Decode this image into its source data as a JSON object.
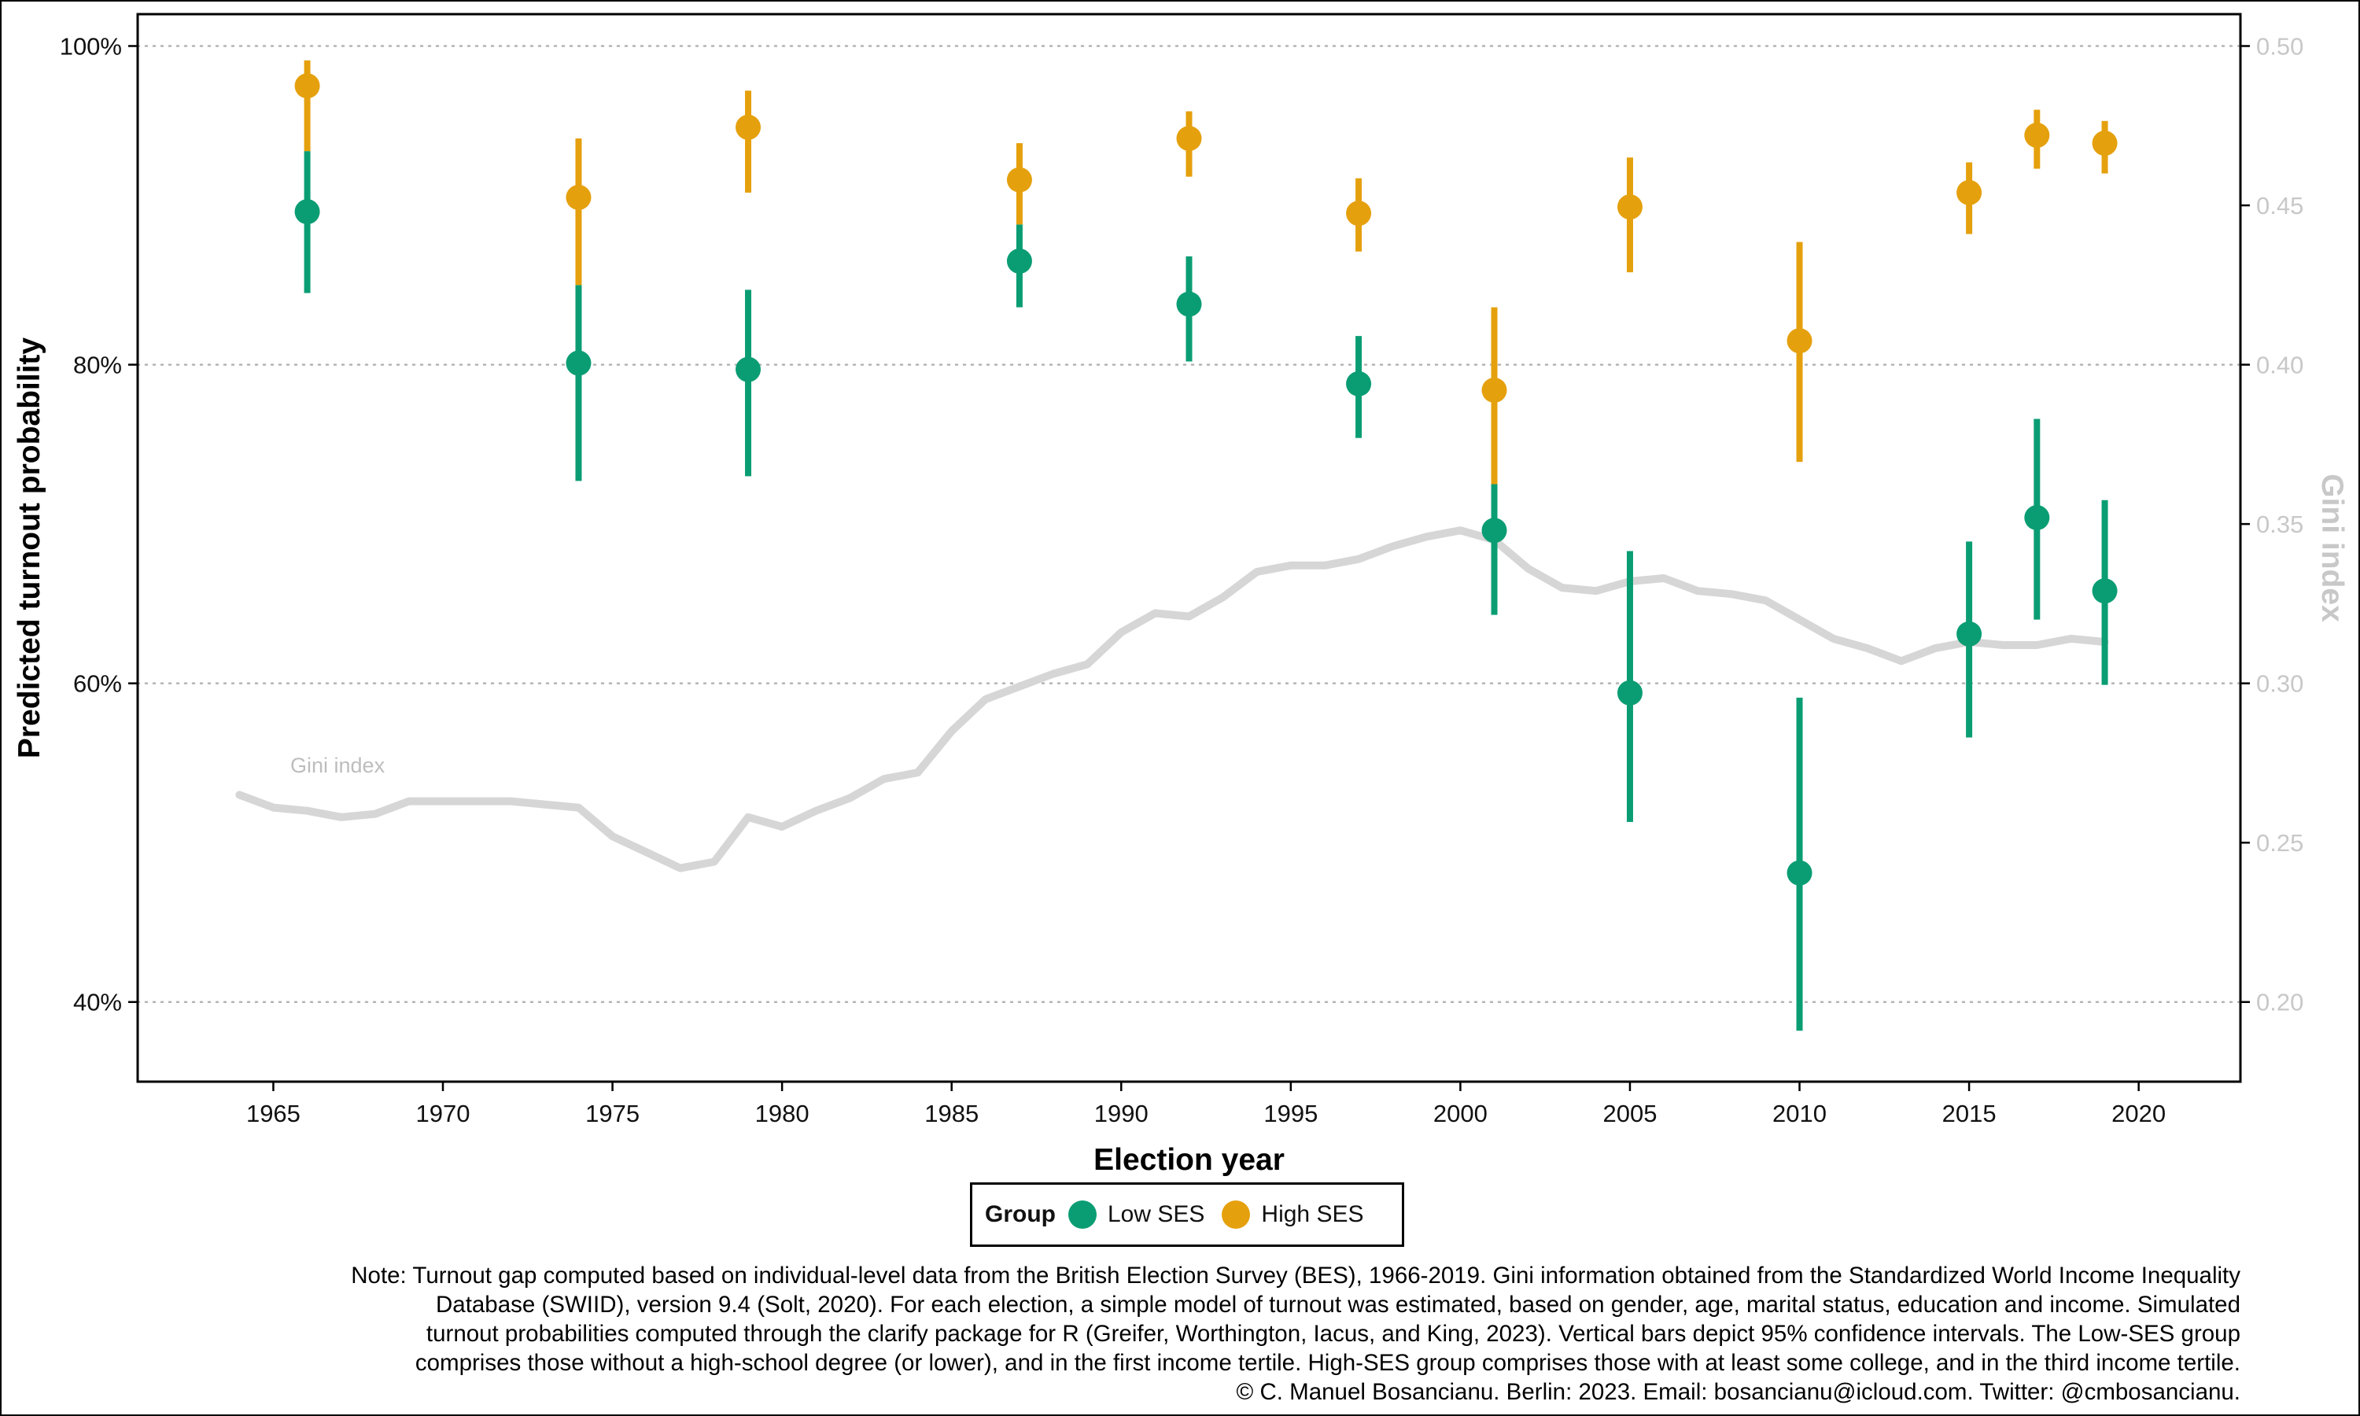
{
  "chart_data": {
    "type": "scatter",
    "xlabel": "Election year",
    "ylabel": "Predicted turnout probability",
    "ylabel_right": "Gini index",
    "ylim": [
      0.35,
      1.02
    ],
    "ylim_right": [
      0.175,
      0.51
    ],
    "xlim": [
      1961,
      2023
    ],
    "x_ticks": [
      1965,
      1970,
      1975,
      1980,
      1985,
      1990,
      1995,
      2000,
      2005,
      2010,
      2015,
      2020
    ],
    "x_tick_labels": [
      "1965",
      "1970",
      "1975",
      "1980",
      "1985",
      "1990",
      "1995",
      "2000",
      "2005",
      "2010",
      "2015",
      "2020"
    ],
    "y_ticks": [
      0.4,
      0.6,
      0.8,
      1.0
    ],
    "y_tick_labels": [
      "40%",
      "60%",
      "80%",
      "100%"
    ],
    "y_right_ticks": [
      0.2,
      0.25,
      0.3,
      0.35,
      0.4,
      0.45,
      0.5
    ],
    "y_right_tick_labels": [
      "0.20",
      "0.25",
      "0.30",
      "0.35",
      "0.40",
      "0.45",
      "0.50"
    ],
    "grid": "horizontal dotted",
    "legend_position": "bottom",
    "legend_title": "Group",
    "series": [
      {
        "name": "Low SES",
        "color": "#0a9d73",
        "x": [
          1966,
          1974,
          1979,
          1987,
          1992,
          1997,
          2001,
          2005,
          2010,
          2015,
          2017,
          2019
        ],
        "y": [
          0.896,
          0.801,
          0.797,
          0.865,
          0.838,
          0.788,
          0.696,
          0.594,
          0.481,
          0.631,
          0.704,
          0.658
        ],
        "lower": [
          0.845,
          0.727,
          0.73,
          0.836,
          0.802,
          0.754,
          0.643,
          0.513,
          0.382,
          0.566,
          0.64,
          0.599
        ],
        "upper": [
          0.934,
          0.85,
          0.847,
          0.888,
          0.868,
          0.818,
          0.725,
          0.683,
          0.591,
          0.689,
          0.766,
          0.715
        ]
      },
      {
        "name": "High SES",
        "color": "#e5a00d",
        "x": [
          1966,
          1974,
          1979,
          1987,
          1992,
          1997,
          2001,
          2005,
          2010,
          2015,
          2017,
          2019
        ],
        "y": [
          0.975,
          0.905,
          0.949,
          0.916,
          0.942,
          0.895,
          0.784,
          0.899,
          0.815,
          0.908,
          0.944,
          0.939
        ],
        "lower": [
          0.934,
          0.85,
          0.908,
          0.888,
          0.918,
          0.871,
          0.725,
          0.858,
          0.739,
          0.882,
          0.923,
          0.92
        ],
        "upper": [
          0.991,
          0.942,
          0.972,
          0.939,
          0.959,
          0.917,
          0.836,
          0.93,
          0.877,
          0.927,
          0.96,
          0.953
        ]
      }
    ],
    "gini": {
      "name": "Gini index",
      "color": "#d6d6d6",
      "x": [
        1964,
        1965,
        1966,
        1967,
        1968,
        1969,
        1970,
        1971,
        1972,
        1973,
        1974,
        1975,
        1976,
        1977,
        1978,
        1979,
        1980,
        1981,
        1982,
        1983,
        1984,
        1985,
        1986,
        1987,
        1988,
        1989,
        1990,
        1991,
        1992,
        1993,
        1994,
        1995,
        1996,
        1997,
        1998,
        1999,
        2000,
        2001,
        2002,
        2003,
        2004,
        2005,
        2006,
        2007,
        2008,
        2009,
        2010,
        2011,
        2012,
        2013,
        2014,
        2015,
        2016,
        2017,
        2018,
        2019
      ],
      "y": [
        0.265,
        0.261,
        0.26,
        0.258,
        0.259,
        0.263,
        0.263,
        0.263,
        0.263,
        0.262,
        0.261,
        0.252,
        0.247,
        0.242,
        0.244,
        0.258,
        0.255,
        0.26,
        0.264,
        0.27,
        0.272,
        0.285,
        0.295,
        0.299,
        0.303,
        0.306,
        0.316,
        0.322,
        0.321,
        0.327,
        0.335,
        0.337,
        0.337,
        0.339,
        0.343,
        0.346,
        0.348,
        0.345,
        0.336,
        0.33,
        0.329,
        0.332,
        0.333,
        0.329,
        0.328,
        0.326,
        0.32,
        0.314,
        0.311,
        0.307,
        0.311,
        0.313,
        0.312,
        0.312,
        0.314,
        0.313
      ],
      "annotation": "Gini index"
    }
  },
  "legend": {
    "title": "Group",
    "items": [
      {
        "label": "Low SES",
        "color": "#0a9d73"
      },
      {
        "label": "High SES",
        "color": "#e5a00d"
      }
    ]
  },
  "note_lines": [
    "Note: Turnout gap computed based on individual-level data from the British Election Survey (BES), 1966-2019. Gini information obtained from the Standardized World Income Inequality",
    "Database (SWIID), version 9.4 (Solt, 2020). For each election, a simple model of turnout was estimated, based on gender, age, marital status, education and income. Simulated",
    "turnout probabilities computed through the clarify package for R (Greifer, Worthington, Iacus, and King, 2023). Vertical bars depict 95% confidence intervals. The Low-SES group",
    "comprises those without a high-school degree (or lower), and in the first income tertile. High-SES group comprises those with at least some college, and in the third income tertile.",
    "© C. Manuel Bosancianu. Berlin: 2023. Email: bosancianu@icloud.com. Twitter: @cmbosancianu."
  ]
}
